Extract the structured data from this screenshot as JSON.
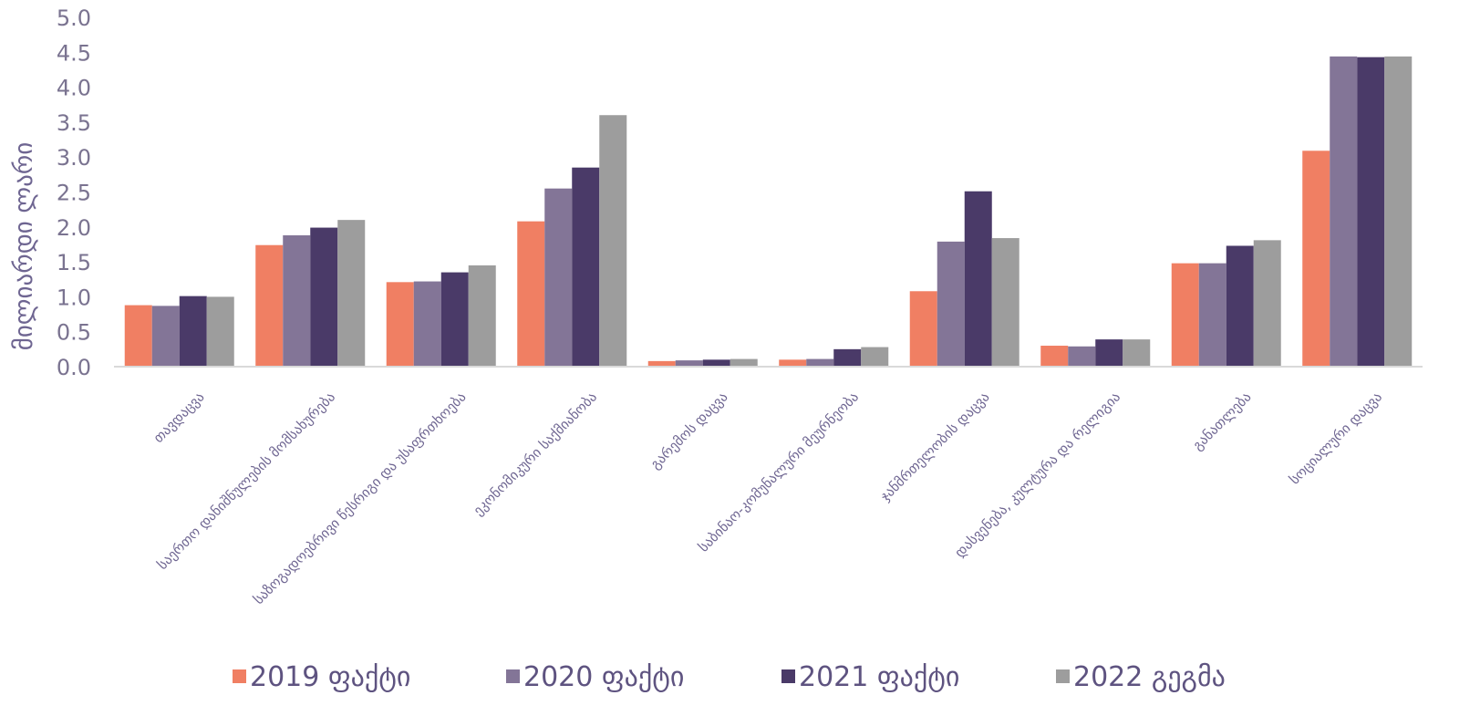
{
  "chart_data": {
    "type": "bar",
    "title": "",
    "xlabel": "",
    "ylabel": "მილიარდი ლარი",
    "ylim": [
      0,
      5
    ],
    "yticks": [
      "0.0",
      "0.5",
      "1.0",
      "1.5",
      "2.0",
      "2.5",
      "3.0",
      "3.5",
      "4.0",
      "4.5",
      "5.0"
    ],
    "grid": false,
    "legend_position": "bottom",
    "categories": [
      "თავდაცვა",
      "საერთო დანიშნულების მომსახურება",
      "საზოგადოებრივი წესრიგი და უსაფრთხოება",
      "ეკონომიკური საქმიანობა",
      "გარემოს დაცვა",
      "საბინაო-კომუნალური მეურნეობა",
      "ჯანმრთელობის დაცვა",
      "დასვენება, კულტურა და რელიგია",
      "განათლება",
      "სოციალური დაცვა"
    ],
    "series": [
      {
        "name": "2019 ფაქტი",
        "color": "#f07f63",
        "values": [
          0.88,
          1.74,
          1.21,
          2.08,
          0.08,
          0.1,
          1.08,
          0.3,
          1.48,
          3.09
        ]
      },
      {
        "name": "2020 ფაქტი",
        "color": "#837597",
        "values": [
          0.87,
          1.88,
          1.22,
          2.55,
          0.09,
          0.11,
          1.79,
          0.29,
          1.48,
          4.44
        ]
      },
      {
        "name": "2021 ფაქტი",
        "color": "#4a3a68",
        "values": [
          1.01,
          1.99,
          1.35,
          2.85,
          0.1,
          0.25,
          2.51,
          0.39,
          1.73,
          4.43
        ]
      },
      {
        "name": "2022 გეგმა",
        "color": "#9d9d9d",
        "values": [
          1.0,
          2.1,
          1.45,
          3.6,
          0.11,
          0.28,
          1.84,
          0.39,
          1.81,
          4.44
        ]
      }
    ]
  }
}
